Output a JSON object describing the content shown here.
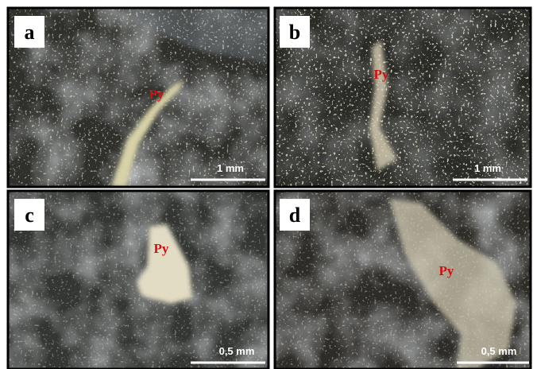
{
  "panels": [
    {
      "label": "a",
      "mineral": "Py",
      "scale": "1 mm"
    },
    {
      "label": "b",
      "mineral": "Py",
      "scale": "1 mm"
    },
    {
      "label": "c",
      "mineral": "Py",
      "scale": "0,5 mm"
    },
    {
      "label": "d",
      "mineral": "Py",
      "scale": "0,5 mm"
    }
  ]
}
